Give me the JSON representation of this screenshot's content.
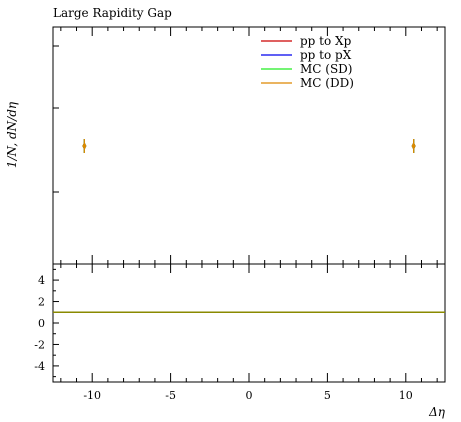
{
  "chart_data": {
    "type": "line",
    "title": "Large Rapidity Gap",
    "ylabel": "1/N, dN/dη",
    "xlabel": "Δη",
    "xlim": [
      -12.5,
      12.5
    ],
    "x_ticks": [
      -10,
      -5,
      0,
      5,
      10
    ],
    "ratio_ylim": [
      -5.5,
      5.5
    ],
    "ratio_ticks": [
      4,
      2,
      0,
      -2,
      -4
    ],
    "legend_position": "top-right",
    "series": [
      {
        "name": "pp to Xp",
        "color": "#cc0000",
        "points": [
          [
            -10.5,
            1.0
          ],
          [
            10.5,
            1.0
          ]
        ]
      },
      {
        "name": "pp to pX",
        "color": "#0000ee",
        "points": [
          [
            -10.5,
            1.0
          ],
          [
            10.5,
            1.0
          ]
        ]
      },
      {
        "name": "MC (SD)",
        "color": "#22ee22",
        "points": [
          [
            -10.5,
            1.0
          ],
          [
            10.5,
            1.0
          ]
        ]
      },
      {
        "name": "MC (DD)",
        "color": "#dd8800",
        "points": [
          [
            -10.5,
            1.0
          ],
          [
            10.5,
            1.0
          ]
        ]
      }
    ],
    "ratio_line": 1.0,
    "ratio_color": "#8a8a00",
    "grid": false
  }
}
